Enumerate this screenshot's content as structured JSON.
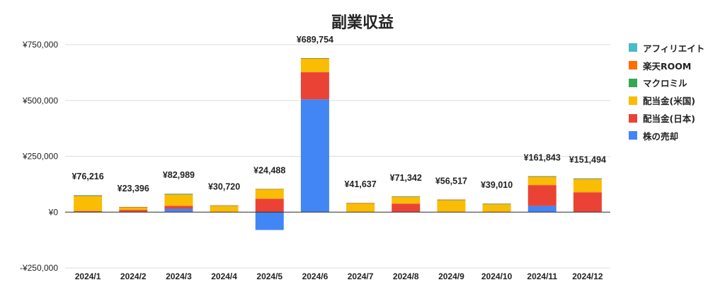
{
  "chart_data": {
    "type": "bar",
    "stacked": true,
    "title": "副業収益",
    "xlabel": "",
    "ylabel": "",
    "ylim": [
      -250000,
      750000
    ],
    "yticks": [
      750000,
      500000,
      250000,
      0,
      -250000
    ],
    "ytick_labels": [
      "¥750,000",
      "¥500,000",
      "¥250,000",
      "¥0",
      "-¥250,000"
    ],
    "grid": true,
    "legend_position": "right",
    "categories": [
      "2024/1",
      "2024/2",
      "2024/3",
      "2024/4",
      "2024/5",
      "2024/6",
      "2024/7",
      "2024/8",
      "2024/9",
      "2024/10",
      "2024/11",
      "2024/12"
    ],
    "totals": [
      76216,
      23396,
      82989,
      30720,
      24488,
      689754,
      41637,
      71342,
      56517,
      39010,
      161843,
      151494
    ],
    "total_labels": [
      "¥76,216",
      "¥23,396",
      "¥82,989",
      "¥30,720",
      "¥24,488",
      "¥689,754",
      "¥41,637",
      "¥71,342",
      "¥56,517",
      "¥39,010",
      "¥161,843",
      "¥151,494"
    ],
    "series": [
      {
        "name": "株の売却",
        "color": "#4285f4",
        "values": [
          0,
          0,
          15000,
          0,
          -80000,
          505000,
          0,
          0,
          0,
          0,
          28000,
          0
        ]
      },
      {
        "name": "配当金(日本)",
        "color": "#ea4335",
        "values": [
          5000,
          10000,
          13000,
          0,
          60000,
          122000,
          0,
          38000,
          0,
          0,
          93000,
          89000
        ]
      },
      {
        "name": "配当金(米国)",
        "color": "#fbbc04",
        "values": [
          67000,
          10000,
          50000,
          27000,
          42000,
          60000,
          38000,
          30000,
          52000,
          35000,
          37000,
          58000
        ]
      },
      {
        "name": "マクロミル",
        "color": "#34a853",
        "values": [
          2000,
          1000,
          2000,
          1500,
          1000,
          1000,
          1500,
          1500,
          2000,
          1500,
          1000,
          1500
        ]
      },
      {
        "name": "楽天ROOM",
        "color": "#ff6d01",
        "values": [
          1216,
          2396,
          1000,
          2220,
          1488,
          1754,
          2137,
          1000,
          2517,
          1510,
          843,
          994
        ]
      },
      {
        "name": "アフィリエイト",
        "color": "#46bdc6",
        "values": [
          1000,
          0,
          1989,
          0,
          0,
          0,
          0,
          842,
          0,
          1000,
          2000,
          2000
        ]
      }
    ],
    "legend_order": [
      "アフィリエイト",
      "楽天ROOM",
      "マクロミル",
      "配当金(米国)",
      "配当金(日本)",
      "株の売却"
    ]
  }
}
